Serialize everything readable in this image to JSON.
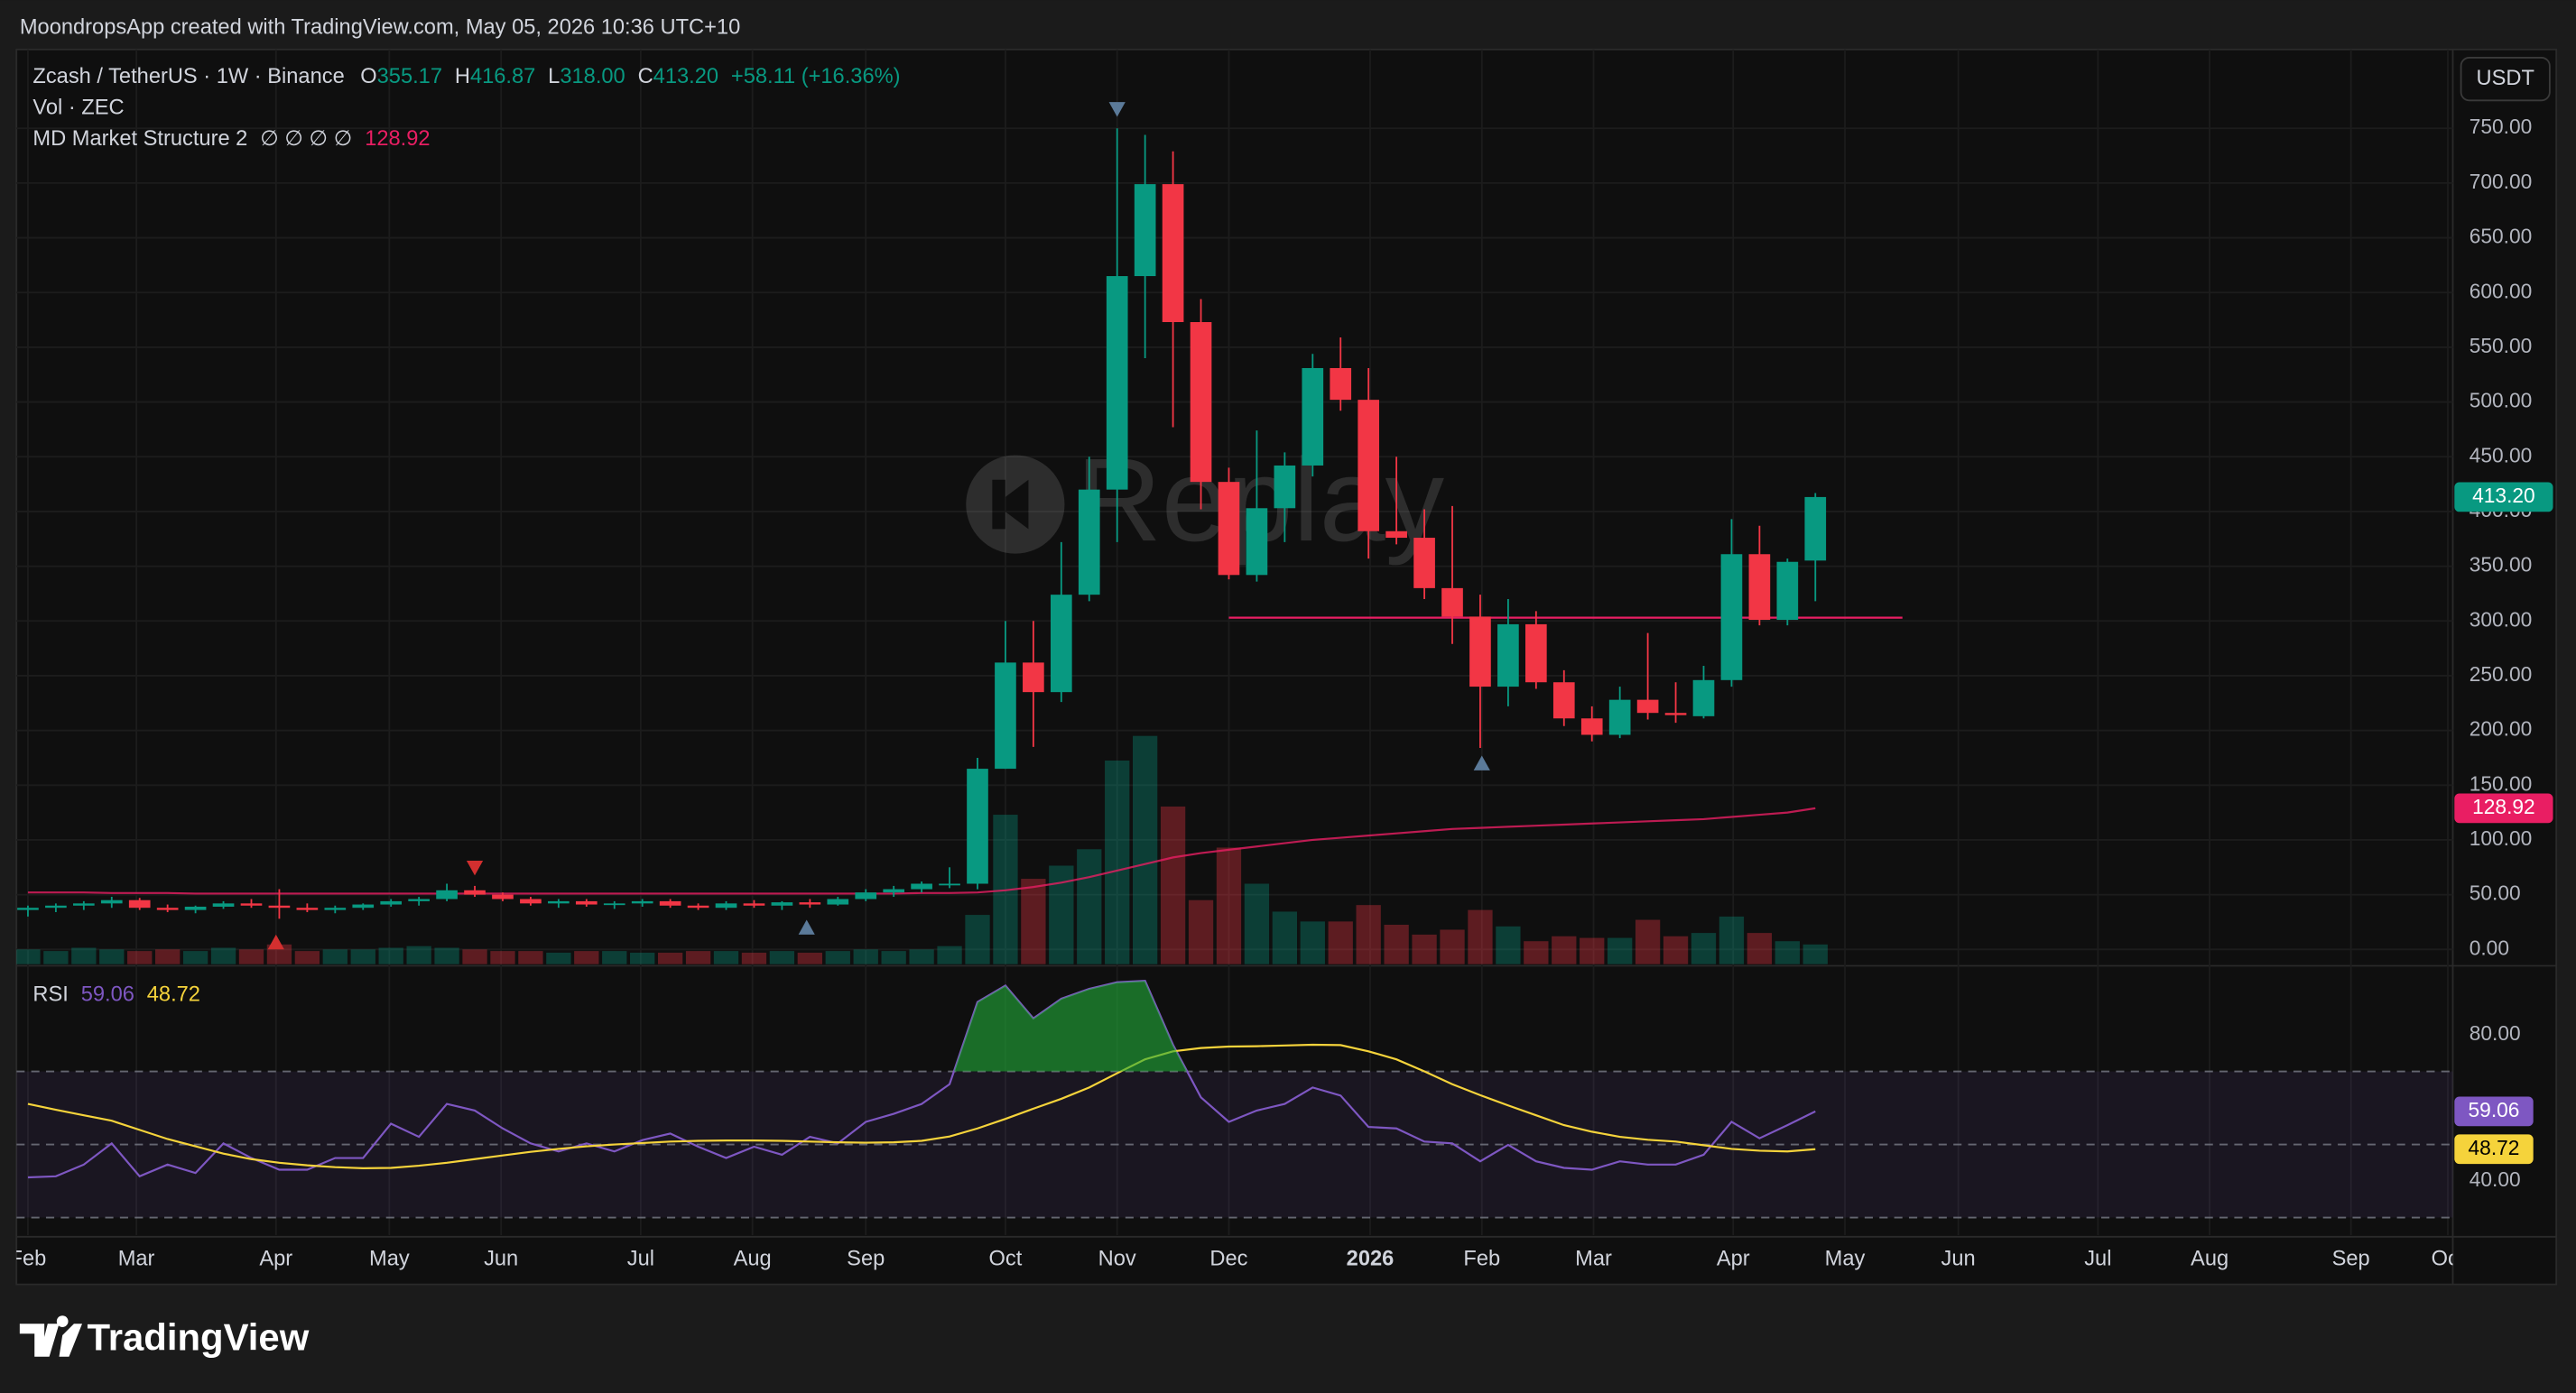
{
  "header": "MoondropsApp created with TradingView.com, May 05, 2026 10:36 UTC+10",
  "watermark": "Replay",
  "footer": {
    "logo": "TradingView"
  },
  "chart_data": {
    "type": "candlestick",
    "title": "Zcash / TetherUS · 1W · Binance",
    "ohlc_legend": {
      "open_label": "O",
      "open": "355.17",
      "high_label": "H",
      "high": "416.87",
      "low_label": "L",
      "low": "318.00",
      "close_label": "C",
      "close": "413.20",
      "change": "+58.11 (+16.36%)"
    },
    "currency": "USDT",
    "up_color": "#089981",
    "down_color": "#f23645",
    "ylim": [
      -13.5,
      822
    ],
    "yticks": [
      {
        "value": 0,
        "label": "0.00"
      },
      {
        "value": 50,
        "label": "50.00"
      },
      {
        "value": 100,
        "label": "100.00"
      },
      {
        "value": 150,
        "label": "150.00"
      },
      {
        "value": 200,
        "label": "200.00"
      },
      {
        "value": 250,
        "label": "250.00"
      },
      {
        "value": 300,
        "label": "300.00"
      },
      {
        "value": 350,
        "label": "350.00"
      },
      {
        "value": 400,
        "label": "400.00"
      },
      {
        "value": 450,
        "label": "450.00"
      },
      {
        "value": 500,
        "label": "500.00"
      },
      {
        "value": 550,
        "label": "550.00"
      },
      {
        "value": 600,
        "label": "600.00"
      },
      {
        "value": 650,
        "label": "650.00"
      },
      {
        "value": 700,
        "label": "700.00"
      },
      {
        "value": 750,
        "label": "750.00"
      }
    ],
    "xticks": [
      "Feb",
      "Mar",
      "Apr",
      "May",
      "Jun",
      "Jul",
      "Aug",
      "Sep",
      "Oct",
      "Nov",
      "Dec",
      "2026",
      "Feb",
      "Mar",
      "Apr",
      "May",
      "Jun",
      "Jul",
      "Aug",
      "Sep",
      "Oct"
    ],
    "candles": {
      "open": [
        36,
        38,
        40,
        42,
        45,
        38,
        36,
        39,
        42,
        40,
        38,
        36,
        38,
        41,
        44,
        46,
        54,
        50,
        46,
        42,
        44,
        41,
        42,
        44,
        40,
        38,
        42,
        40,
        43,
        41,
        46,
        52,
        55,
        60,
        60,
        165,
        262,
        235,
        324,
        420,
        615,
        699,
        573,
        427,
        342,
        403,
        442,
        531,
        502,
        382,
        376,
        330,
        304,
        240,
        297,
        244,
        211,
        196,
        228,
        216,
        213,
        246,
        361,
        301,
        355.17
      ],
      "high": [
        40,
        42,
        44,
        48,
        47,
        41,
        40,
        44,
        46,
        55,
        42,
        40,
        42,
        46,
        48,
        60,
        58,
        52,
        48,
        46,
        46,
        44,
        46,
        46,
        42,
        44,
        45,
        44,
        46,
        48,
        55,
        58,
        62,
        75,
        175,
        300,
        300,
        372,
        450,
        750,
        744,
        729,
        594,
        440,
        474,
        454,
        544,
        559,
        531,
        450,
        402,
        405,
        324,
        320,
        309,
        255,
        222,
        240,
        289,
        244,
        259,
        393,
        387,
        357,
        416.87
      ],
      "low": [
        30,
        34,
        36,
        38,
        36,
        34,
        33,
        37,
        38,
        28,
        34,
        33,
        36,
        39,
        40,
        44,
        48,
        44,
        40,
        38,
        39,
        37,
        39,
        38,
        36,
        36,
        38,
        36,
        38,
        40,
        44,
        48,
        52,
        56,
        55,
        165,
        185,
        226,
        318,
        372,
        540,
        477,
        402,
        338,
        336,
        372,
        432,
        492,
        357,
        370,
        320,
        279,
        184,
        222,
        238,
        204,
        190,
        193,
        210,
        207,
        211,
        240,
        296,
        296,
        318
      ],
      "close": [
        38,
        40,
        42,
        45,
        38,
        36,
        39,
        42,
        40,
        38,
        36,
        38,
        41,
        44,
        46,
        54,
        50,
        46,
        42,
        44,
        41,
        42,
        44,
        40,
        38,
        42,
        40,
        43,
        41,
        46,
        52,
        55,
        60,
        60,
        165,
        262,
        235,
        324,
        420,
        615,
        699,
        573,
        427,
        342,
        403,
        442,
        531,
        502,
        382,
        376,
        330,
        304,
        240,
        297,
        244,
        211,
        196,
        228,
        216,
        214,
        246,
        361,
        301,
        354,
        413.2
      ]
    },
    "volume": {
      "name": "Vol · ZEC",
      "values": [
        9,
        8,
        10,
        9,
        8,
        9,
        8,
        10,
        9,
        12,
        8,
        9,
        9,
        10,
        11,
        10,
        9,
        8,
        8,
        7,
        8,
        8,
        7,
        7,
        8,
        8,
        7,
        8,
        7,
        8,
        9,
        8,
        9,
        11,
        30,
        91,
        52,
        60,
        70,
        124,
        139,
        96,
        39,
        71,
        49,
        32,
        26,
        26,
        36,
        24,
        18,
        21,
        33,
        23,
        14,
        17,
        16,
        16,
        27,
        17,
        19,
        29,
        19,
        14,
        12
      ]
    },
    "indicator": {
      "name": "MD Market Structure 2",
      "settings": "∅ ∅ ∅ ∅",
      "value_label": "128.92",
      "color": "#e91e63",
      "level": 303,
      "values": [
        52,
        52,
        52,
        51.5,
        51.5,
        51.5,
        51,
        51,
        51,
        51,
        51,
        51,
        51,
        51,
        51,
        51,
        51,
        51,
        51,
        51,
        51,
        51,
        51,
        51,
        51,
        51,
        51,
        51,
        51,
        51,
        51,
        51,
        51.5,
        51.5,
        52,
        54,
        57,
        61,
        66,
        72,
        78,
        84,
        88,
        91,
        94,
        97,
        100,
        102,
        104,
        106,
        108,
        110,
        111,
        112,
        113,
        114,
        115,
        116,
        117,
        118,
        119,
        121,
        123,
        125,
        128.92
      ]
    },
    "rsi": {
      "name": "RSI",
      "ylim": [
        25.2,
        98
      ],
      "yticks": [
        {
          "value": 80,
          "label": "80.00"
        },
        {
          "value": 40,
          "label": "40.00"
        }
      ],
      "bands": [
        70,
        50,
        30
      ],
      "series": [
        {
          "color": "#7e57c2",
          "value_label": "59.06",
          "values": [
            41,
            41.3,
            44.5,
            50.3,
            41.3,
            44.5,
            42.2,
            50.3,
            46.3,
            43.1,
            43.1,
            46.3,
            46.3,
            55.7,
            52.1,
            61.1,
            59.3,
            54.4,
            50.3,
            48.1,
            50.3,
            48.1,
            51.2,
            53,
            49.4,
            46.3,
            49.4,
            47.2,
            52.1,
            50.3,
            56.2,
            58.4,
            61.1,
            66.5,
            89,
            93.5,
            84.5,
            89.9,
            92.6,
            94.4,
            94.8,
            77.3,
            62.9,
            56.2,
            59.3,
            61.1,
            65.6,
            63.4,
            54.8,
            54.4,
            50.8,
            50.3,
            45.4,
            49.9,
            45.4,
            43.6,
            43.1,
            45.4,
            44.5,
            44.5,
            47.2,
            56.2,
            51.7,
            55.3,
            59.06
          ]
        },
        {
          "color": "#f5d33b",
          "value_label": "48.72",
          "values": [
            61.1,
            59.5,
            58,
            56.5,
            54,
            51.5,
            49.5,
            47.5,
            46,
            45,
            44.3,
            43.8,
            43.5,
            43.6,
            44.2,
            45,
            46,
            47,
            48,
            48.8,
            49.5,
            50,
            50.4,
            50.8,
            51,
            51.1,
            51.1,
            51,
            50.8,
            50.6,
            50.5,
            50.6,
            51,
            52.2,
            54.4,
            57,
            59.8,
            62.5,
            65.6,
            69.5,
            73.3,
            75.5,
            76.4,
            76.8,
            76.9,
            77.1,
            77.3,
            77.2,
            75.5,
            73.3,
            70,
            66.5,
            63.5,
            60.7,
            58,
            55.3,
            53.5,
            52.1,
            51.3,
            50.8,
            49.8,
            48.8,
            48.3,
            48.1,
            48.72
          ]
        }
      ]
    }
  }
}
